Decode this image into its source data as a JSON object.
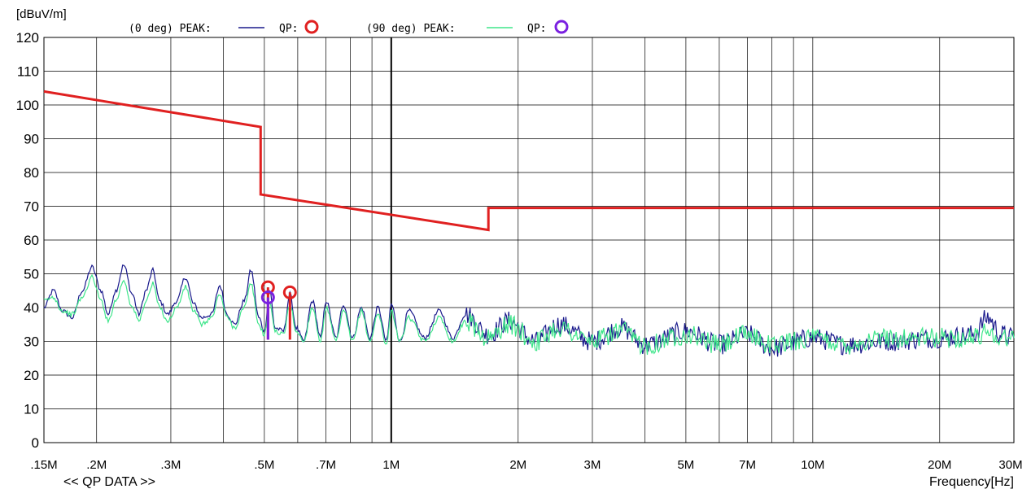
{
  "chart_data": {
    "type": "line",
    "title": "",
    "ylabel": "[dBuV/m]",
    "xlabel": "Frequency[Hz]",
    "footer_label": "<< QP DATA >>",
    "x_scale": "log",
    "xlim_hz": [
      150000,
      30000000
    ],
    "ylim": [
      0,
      120
    ],
    "y_ticks": [
      0,
      10,
      20,
      30,
      40,
      50,
      60,
      70,
      80,
      90,
      100,
      110,
      120
    ],
    "x_ticks": [
      {
        "value": 150000,
        "label": ".15M"
      },
      {
        "value": 200000,
        "label": ".2M"
      },
      {
        "value": 300000,
        "label": ".3M"
      },
      {
        "value": 500000,
        "label": ".5M"
      },
      {
        "value": 700000,
        "label": ".7M"
      },
      {
        "value": 1000000,
        "label": "1M"
      },
      {
        "value": 2000000,
        "label": "2M"
      },
      {
        "value": 3000000,
        "label": "3M"
      },
      {
        "value": 5000000,
        "label": "5M"
      },
      {
        "value": 7000000,
        "label": "7M"
      },
      {
        "value": 10000000,
        "label": "10M"
      },
      {
        "value": 20000000,
        "label": "20M"
      },
      {
        "value": 30000000,
        "label": "30M"
      }
    ],
    "grid": true,
    "legend": {
      "entries": [
        {
          "prefix": "(0 deg) PEAK:",
          "qp_label": "QP:",
          "peak_color": "#1a1a8c",
          "qp_color": "#e02020"
        },
        {
          "prefix": "(90 deg) PEAK:",
          "qp_label": "QP:",
          "peak_color": "#3ee58a",
          "qp_color": "#7a20e0"
        }
      ],
      "placement": "top"
    },
    "limit_line": {
      "color": "#e02020",
      "points": [
        [
          150000,
          104
        ],
        [
          490000,
          93.5
        ],
        [
          490000,
          73.5
        ],
        [
          1700000,
          63
        ],
        [
          1700000,
          69.5
        ],
        [
          30000000,
          69.5
        ]
      ]
    },
    "qp_markers": [
      {
        "series": "0 deg",
        "freq_hz": 510000,
        "value": 46,
        "color": "#e02020"
      },
      {
        "series": "0 deg",
        "freq_hz": 575000,
        "value": 44.5,
        "color": "#e02020"
      },
      {
        "series": "90 deg",
        "freq_hz": 510000,
        "value": 43,
        "color": "#7a20e0"
      }
    ],
    "series": [
      {
        "key": "0 deg",
        "color": "#1a1a8c",
        "points": [
          [
            150000,
            40
          ],
          [
            158000,
            45
          ],
          [
            166000,
            39
          ],
          [
            175000,
            37
          ],
          [
            185000,
            45
          ],
          [
            195000,
            52
          ],
          [
            205000,
            45
          ],
          [
            213000,
            38
          ],
          [
            222000,
            45
          ],
          [
            232000,
            52.5
          ],
          [
            243000,
            44
          ],
          [
            252000,
            38
          ],
          [
            262000,
            45
          ],
          [
            272000,
            51
          ],
          [
            282000,
            42
          ],
          [
            295000,
            38
          ],
          [
            310000,
            42
          ],
          [
            325000,
            49
          ],
          [
            340000,
            41
          ],
          [
            355000,
            37
          ],
          [
            375000,
            38
          ],
          [
            392000,
            46.5
          ],
          [
            408000,
            38
          ],
          [
            425000,
            35
          ],
          [
            448000,
            42
          ],
          [
            465000,
            51
          ],
          [
            485000,
            37
          ],
          [
            500000,
            33
          ],
          [
            515000,
            45
          ],
          [
            530000,
            34
          ],
          [
            555000,
            33
          ],
          [
            575000,
            44
          ],
          [
            595000,
            34
          ],
          [
            620000,
            30
          ],
          [
            650000,
            42
          ],
          [
            680000,
            31
          ],
          [
            700000,
            42
          ],
          [
            740000,
            31
          ],
          [
            770000,
            41
          ],
          [
            810000,
            31
          ],
          [
            850000,
            40
          ],
          [
            890000,
            31
          ],
          [
            930000,
            40
          ],
          [
            975000,
            30
          ],
          [
            1000000,
            41
          ],
          [
            1050000,
            30
          ],
          [
            1100000,
            39
          ],
          [
            1200000,
            31
          ],
          [
            1300000,
            39
          ],
          [
            1400000,
            31
          ],
          [
            1500000,
            38
          ],
          [
            1700000,
            32
          ],
          [
            1900000,
            36
          ],
          [
            2200000,
            30
          ],
          [
            2500000,
            35
          ],
          [
            3000000,
            30
          ],
          [
            3500000,
            34
          ],
          [
            4000000,
            29
          ],
          [
            5000000,
            33
          ],
          [
            6000000,
            29
          ],
          [
            7000000,
            32
          ],
          [
            8000000,
            28
          ],
          [
            10000000,
            31
          ],
          [
            12000000,
            29
          ],
          [
            15000000,
            30
          ],
          [
            20000000,
            31
          ],
          [
            24000000,
            32
          ],
          [
            26000000,
            37
          ],
          [
            28000000,
            32
          ],
          [
            30000000,
            31
          ]
        ]
      },
      {
        "key": "90 deg",
        "color": "#3ee58a",
        "points": [
          [
            150000,
            42
          ],
          [
            158000,
            43
          ],
          [
            166000,
            39
          ],
          [
            175000,
            38
          ],
          [
            185000,
            43
          ],
          [
            195000,
            49
          ],
          [
            205000,
            42
          ],
          [
            213000,
            36
          ],
          [
            222000,
            42
          ],
          [
            232000,
            48
          ],
          [
            243000,
            40
          ],
          [
            252000,
            36
          ],
          [
            262000,
            42
          ],
          [
            272000,
            47
          ],
          [
            282000,
            40
          ],
          [
            295000,
            36
          ],
          [
            310000,
            40
          ],
          [
            325000,
            46
          ],
          [
            340000,
            39
          ],
          [
            355000,
            35
          ],
          [
            375000,
            37
          ],
          [
            392000,
            44
          ],
          [
            408000,
            37
          ],
          [
            425000,
            34
          ],
          [
            448000,
            40
          ],
          [
            465000,
            47
          ],
          [
            485000,
            35
          ],
          [
            500000,
            32
          ],
          [
            515000,
            42
          ],
          [
            530000,
            33
          ],
          [
            555000,
            32
          ],
          [
            575000,
            41
          ],
          [
            595000,
            33
          ],
          [
            620000,
            30
          ],
          [
            650000,
            40
          ],
          [
            680000,
            30
          ],
          [
            700000,
            40
          ],
          [
            740000,
            30
          ],
          [
            770000,
            39
          ],
          [
            810000,
            30
          ],
          [
            850000,
            39
          ],
          [
            890000,
            30
          ],
          [
            930000,
            38
          ],
          [
            975000,
            29
          ],
          [
            1000000,
            39
          ],
          [
            1050000,
            30
          ],
          [
            1100000,
            37
          ],
          [
            1200000,
            30
          ],
          [
            1300000,
            37
          ],
          [
            1400000,
            30
          ],
          [
            1500000,
            36
          ],
          [
            1700000,
            31
          ],
          [
            1900000,
            35
          ],
          [
            2200000,
            30
          ],
          [
            2500000,
            34
          ],
          [
            3000000,
            30
          ],
          [
            3500000,
            33
          ],
          [
            4000000,
            29
          ],
          [
            5000000,
            32
          ],
          [
            6000000,
            29
          ],
          [
            7000000,
            32
          ],
          [
            8000000,
            29
          ],
          [
            10000000,
            31
          ],
          [
            12000000,
            29
          ],
          [
            15000000,
            31
          ],
          [
            20000000,
            31
          ],
          [
            24000000,
            31
          ],
          [
            26000000,
            33
          ],
          [
            28000000,
            31
          ],
          [
            30000000,
            31
          ]
        ]
      }
    ]
  }
}
